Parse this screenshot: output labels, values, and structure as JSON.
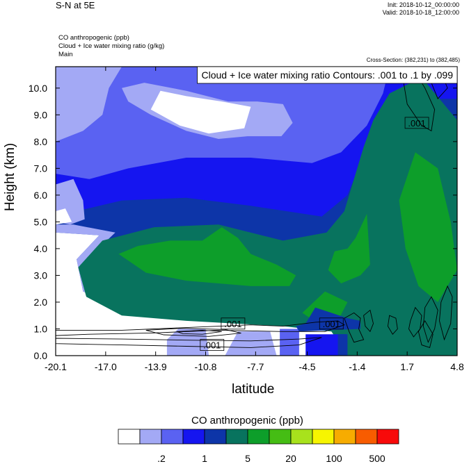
{
  "header": {
    "title": "S-N at 5E",
    "init": "Init: 2018-10-12_00:00:00",
    "valid": "Valid: 2018-10-18_12:00:00",
    "fields": [
      "CO anthropogenic   (ppb)",
      "Cloud + Ice water mixing ratio   (g/kg)",
      "Main"
    ],
    "cross_section": "Cross-Section: (382,231) to (382,485)"
  },
  "chart_data": {
    "type": "heatmap",
    "title": "S-N at 5E",
    "xlabel": "latitude",
    "ylabel": "Height (km)",
    "xlim": [
      -20.1,
      4.8
    ],
    "ylim": [
      0.0,
      10.8
    ],
    "x_ticks": [
      "-20.1",
      "-17.0",
      "-13.9",
      "-10.8",
      "-7.7",
      "-4.5",
      "-1.4",
      "1.7",
      "4.8"
    ],
    "x_tick_values": [
      -20.1,
      -17.0,
      -13.9,
      -10.8,
      -7.7,
      -4.5,
      -1.4,
      1.7,
      4.8
    ],
    "y_ticks": [
      "0.0",
      "1.0",
      "2.0",
      "3.0",
      "4.0",
      "5.0",
      "6.0",
      "7.0",
      "8.0",
      "9.0",
      "10.0"
    ],
    "y_tick_values": [
      0,
      1,
      2,
      3,
      4,
      5,
      6,
      7,
      8,
      9,
      10
    ],
    "contour_label": "Cloud + Ice water mixing ratio Contours: .001 to .1 by .099",
    "contour_annotations": [
      {
        "text": ".001",
        "lat": 2.3,
        "height": 8.7
      },
      {
        "text": ".001",
        "lat": -9.1,
        "height": 1.2
      },
      {
        "text": ".001",
        "lat": -3.0,
        "height": 1.2
      },
      {
        "text": ".001",
        "lat": -10.4,
        "height": 0.4
      }
    ],
    "colorbar": {
      "title": "CO anthropogenic  (ppb)",
      "colors": [
        "#ffffff",
        "#a3a9f5",
        "#5a62f2",
        "#1515f0",
        "#0d35a8",
        "#08735e",
        "#0d9e2a",
        "#45bd14",
        "#a8e21c",
        "#f7f500",
        "#f7ac00",
        "#f85c00",
        "#f80a0a"
      ],
      "labels": [
        ".2",
        "1",
        "5",
        "20",
        "100",
        "500"
      ]
    },
    "field_regions": [
      {
        "level": 5,
        "points": [
          [
            -2.0,
            0
          ],
          [
            4.8,
            0
          ],
          [
            4.8,
            8.8
          ],
          [
            2.6,
            10.4
          ],
          [
            0.6,
            9.8
          ],
          [
            -0.4,
            8.8
          ],
          [
            -1.0,
            7.8
          ],
          [
            -1.6,
            6.6
          ],
          [
            -2.2,
            5.4
          ],
          [
            -3.3,
            4.6
          ],
          [
            -6.0,
            4.3
          ],
          [
            -10.0,
            4.9
          ],
          [
            -14.0,
            4.8
          ],
          [
            -17.2,
            4.3
          ],
          [
            -18.7,
            3.3
          ],
          [
            -18.2,
            2.2
          ],
          [
            -16.0,
            1.5
          ],
          [
            -12.0,
            1.3
          ],
          [
            -6.0,
            1.1
          ],
          [
            -3.0,
            0.9
          ]
        ]
      },
      {
        "level": 6,
        "points": [
          [
            -16.2,
            3.8
          ],
          [
            -15.0,
            4.1
          ],
          [
            -13.0,
            4.3
          ],
          [
            -11.0,
            4.3
          ],
          [
            -9.8,
            4.8
          ],
          [
            -8.8,
            4.4
          ],
          [
            -8.0,
            3.8
          ],
          [
            -6.4,
            3.4
          ],
          [
            -5.2,
            3.0
          ],
          [
            -5.6,
            2.6
          ],
          [
            -8.0,
            2.6
          ],
          [
            -10.0,
            2.7
          ],
          [
            -12.0,
            2.8
          ],
          [
            -14.5,
            3.1
          ]
        ]
      },
      {
        "level": 6,
        "points": [
          [
            -3.2,
            3.2
          ],
          [
            -2.8,
            3.9
          ],
          [
            -2.0,
            4.0
          ],
          [
            -1.5,
            4.4
          ],
          [
            -0.8,
            5.3
          ],
          [
            -0.6,
            3.4
          ],
          [
            -1.2,
            3.0
          ],
          [
            -2.4,
            2.7
          ]
        ]
      },
      {
        "level": 6,
        "points": [
          [
            -4.8,
            1.6
          ],
          [
            -3.4,
            2.4
          ],
          [
            -2.0,
            2.0
          ],
          [
            -2.6,
            1.3
          ],
          [
            -3.6,
            1.1
          ]
        ]
      },
      {
        "level": 6,
        "points": [
          [
            1.2,
            5.8
          ],
          [
            2.2,
            7.6
          ],
          [
            3.6,
            7.0
          ],
          [
            4.4,
            5.0
          ],
          [
            4.8,
            3.2
          ],
          [
            3.6,
            2.0
          ],
          [
            2.4,
            2.6
          ],
          [
            1.6,
            4.0
          ]
        ]
      },
      {
        "level": 1,
        "points": [
          [
            -20.1,
            10.8
          ],
          [
            -16.0,
            10.8
          ],
          [
            -16.8,
            10.0
          ],
          [
            -17.2,
            9.0
          ],
          [
            -18.4,
            8.4
          ],
          [
            -20.1,
            8.0
          ]
        ]
      },
      {
        "level": 1,
        "points": [
          [
            -10.4,
            10.8
          ],
          [
            -6.4,
            10.8
          ],
          [
            -7.4,
            10.2
          ],
          [
            -9.4,
            10.4
          ]
        ]
      },
      {
        "level": 1,
        "points": [
          [
            -20.1,
            6.4
          ],
          [
            -19.0,
            6.6
          ],
          [
            -18.4,
            5.8
          ],
          [
            -18.3,
            5.1
          ],
          [
            -19.2,
            4.9
          ],
          [
            -20.1,
            5.0
          ]
        ]
      },
      {
        "level": 1,
        "points": [
          [
            -16.0,
            10.0
          ],
          [
            -14.6,
            10.2
          ],
          [
            -12.0,
            9.9
          ],
          [
            -9.4,
            9.5
          ],
          [
            -7.6,
            9.5
          ],
          [
            -6.0,
            9.4
          ],
          [
            -5.4,
            8.7
          ],
          [
            -6.1,
            8.2
          ],
          [
            -8.2,
            8.2
          ],
          [
            -10.0,
            8.1
          ],
          [
            -12.0,
            8.4
          ],
          [
            -14.2,
            9.0
          ],
          [
            -15.6,
            9.5
          ]
        ]
      },
      {
        "level": 0,
        "points": [
          [
            -14.2,
            9.2
          ],
          [
            -13.6,
            9.9
          ],
          [
            -12.0,
            9.7
          ],
          [
            -9.8,
            9.5
          ],
          [
            -8.0,
            9.3
          ],
          [
            -8.4,
            8.5
          ],
          [
            -10.6,
            8.3
          ],
          [
            -12.4,
            8.6
          ]
        ]
      },
      {
        "level": 0,
        "points": [
          [
            -20.1,
            5.4
          ],
          [
            -19.5,
            5.5
          ],
          [
            -19.1,
            5.0
          ],
          [
            -20.1,
            4.9
          ]
        ]
      },
      {
        "level": 1,
        "points": [
          [
            -13.2,
            0
          ],
          [
            -10.6,
            0
          ],
          [
            -10.8,
            1.0
          ],
          [
            -12.5,
            1.0
          ],
          [
            -13.2,
            0.6
          ]
        ]
      },
      {
        "level": 1,
        "points": [
          [
            -9.6,
            0
          ],
          [
            -6.4,
            0
          ],
          [
            -6.8,
            0.9
          ],
          [
            -8.8,
            0.9
          ]
        ]
      },
      {
        "level": 2,
        "points": [
          [
            -6.2,
            0
          ],
          [
            -5.0,
            0
          ],
          [
            -5.0,
            1.0
          ],
          [
            -6.2,
            1.0
          ]
        ]
      },
      {
        "level": 3,
        "points": [
          [
            -4.6,
            0
          ],
          [
            -2.1,
            0
          ],
          [
            -2.1,
            0.8
          ],
          [
            -4.6,
            0.8
          ]
        ]
      },
      {
        "level": 4,
        "points": [
          [
            -2.6,
            0
          ],
          [
            -2.0,
            0
          ],
          [
            -2.0,
            0.8
          ],
          [
            -2.6,
            0.8
          ]
        ]
      },
      {
        "level": 4,
        "points": [
          [
            -5.2,
            1.1
          ],
          [
            -4.6,
            1.2
          ],
          [
            -4.0,
            1.8
          ],
          [
            -3.0,
            1.6
          ],
          [
            -2.0,
            1.4
          ],
          [
            -1.2,
            1.3
          ],
          [
            -1.2,
            1.0
          ],
          [
            -5.0,
            0.9
          ]
        ]
      }
    ],
    "contour_lines": [
      {
        "points": [
          [
            -20.1,
            0.95
          ],
          [
            -16.0,
            0.95
          ],
          [
            -12.0,
            1.05
          ],
          [
            -8.0,
            1.15
          ],
          [
            -6.0,
            1.1
          ],
          [
            -4.0,
            1.25
          ],
          [
            -2.6,
            1.3
          ],
          [
            -2.2,
            1.15
          ],
          [
            -3.4,
            0.9
          ],
          [
            -6.0,
            0.9
          ],
          [
            -10.0,
            0.95
          ],
          [
            -14.0,
            0.85
          ],
          [
            -18.0,
            0.8
          ],
          [
            -20.1,
            0.75
          ]
        ]
      },
      {
        "points": [
          [
            -20.1,
            0.65
          ],
          [
            -16.0,
            0.62
          ],
          [
            -12.0,
            0.58
          ],
          [
            -8.0,
            0.55
          ],
          [
            -5.0,
            0.62
          ],
          [
            -3.6,
            0.68
          ],
          [
            -5.0,
            0.4
          ],
          [
            -8.0,
            0.3
          ],
          [
            -12.0,
            0.35
          ],
          [
            -16.0,
            0.4
          ],
          [
            -20.1,
            0.45
          ]
        ]
      },
      {
        "points": [
          [
            -14.5,
            0.95
          ],
          [
            -12.4,
            1.02
          ],
          [
            -9.6,
            0.98
          ],
          [
            -8.6,
            0.84
          ],
          [
            -10.6,
            0.72
          ],
          [
            -13.4,
            0.78
          ]
        ]
      },
      {
        "points": [
          [
            -12.6,
            0.9
          ],
          [
            -11.0,
            0.95
          ],
          [
            -9.8,
            0.9
          ],
          [
            -11.0,
            0.8
          ],
          [
            -12.2,
            0.82
          ]
        ]
      },
      {
        "points": [
          [
            1.4,
            10.5
          ],
          [
            1.7,
            9.4
          ],
          [
            2.6,
            8.6
          ],
          [
            3.2,
            8.4
          ],
          [
            3.4,
            9.2
          ],
          [
            2.8,
            10.0
          ],
          [
            2.2,
            10.6
          ]
        ]
      },
      {
        "points": [
          [
            2.6,
            10.6
          ],
          [
            3.2,
            10.2
          ],
          [
            3.6,
            9.6
          ],
          [
            4.2,
            10.0
          ],
          [
            3.8,
            10.6
          ]
        ]
      },
      {
        "points": [
          [
            -2.2,
            1.4
          ],
          [
            -1.6,
            1.6
          ],
          [
            -1.2,
            1.4
          ],
          [
            -1.3,
            1.0
          ],
          [
            -1.0,
            0.6
          ],
          [
            -1.6,
            0.5
          ],
          [
            -1.9,
            0.9
          ]
        ]
      },
      {
        "points": [
          [
            -1.0,
            1.5
          ],
          [
            -0.6,
            1.7
          ],
          [
            -0.4,
            1.2
          ],
          [
            -0.6,
            0.9
          ],
          [
            -0.9,
            1.1
          ]
        ]
      },
      {
        "points": [
          [
            0.6,
            1.5
          ],
          [
            1.0,
            1.4
          ],
          [
            1.1,
            1.0
          ],
          [
            0.8,
            0.8
          ],
          [
            0.5,
            1.1
          ]
        ]
      },
      {
        "points": [
          [
            1.9,
            1.3
          ],
          [
            2.2,
            1.8
          ],
          [
            2.6,
            1.5
          ],
          [
            2.5,
            1.0
          ],
          [
            2.1,
            0.7
          ],
          [
            1.8,
            1.0
          ]
        ]
      },
      {
        "points": [
          [
            2.8,
            1.8
          ],
          [
            3.2,
            2.2
          ],
          [
            3.6,
            1.7
          ],
          [
            3.4,
            1.0
          ],
          [
            3.0,
            0.5
          ],
          [
            2.7,
            1.1
          ]
        ]
      },
      {
        "points": [
          [
            3.8,
            2.0
          ],
          [
            4.2,
            2.6
          ],
          [
            4.5,
            2.2
          ],
          [
            4.4,
            1.2
          ],
          [
            4.0,
            0.6
          ],
          [
            3.7,
            1.3
          ]
        ]
      },
      {
        "points": [
          [
            2.4,
            0.9
          ],
          [
            2.8,
            1.3
          ],
          [
            3.3,
            0.8
          ],
          [
            3.1,
            0.3
          ],
          [
            2.6,
            0.4
          ]
        ]
      }
    ]
  }
}
